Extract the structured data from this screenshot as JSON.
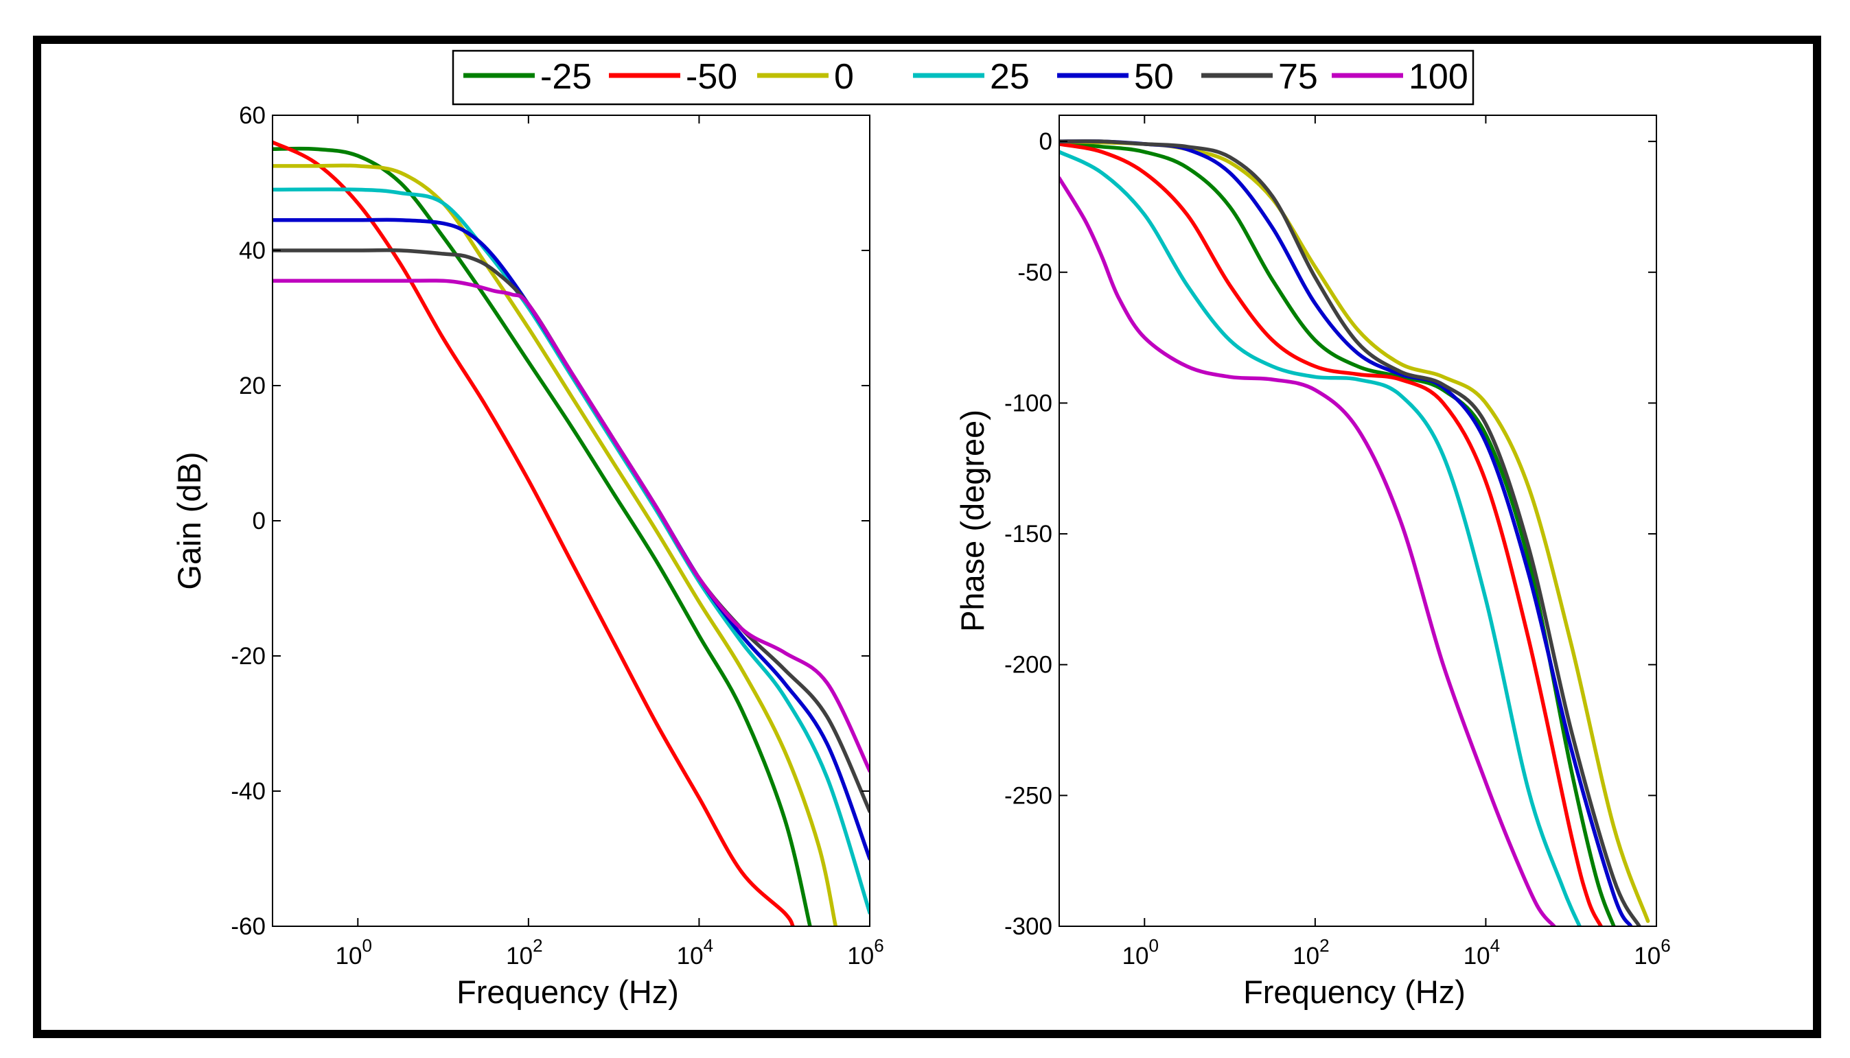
{
  "legend": {
    "entries": [
      {
        "label": "-25",
        "color": "#007f00"
      },
      {
        "label": "-50",
        "color": "#ff0000"
      },
      {
        "label": "0",
        "color": "#bfbf00"
      },
      {
        "label": "25",
        "color": "#00bfbf"
      },
      {
        "label": "50",
        "color": "#0000cc"
      },
      {
        "label": "75",
        "color": "#404040"
      },
      {
        "label": "100",
        "color": "#bf00bf"
      }
    ]
  },
  "chart_data": [
    {
      "type": "line",
      "title": "",
      "xlabel": "Frequency (Hz)",
      "ylabel": "Gain (dB)",
      "xscale": "log",
      "xlim_log10": [
        -1,
        6
      ],
      "ylim": [
        -60,
        60
      ],
      "x_ticks": [
        {
          "base": "10",
          "exp": "0",
          "log": 0
        },
        {
          "base": "10",
          "exp": "2",
          "log": 2
        },
        {
          "base": "10",
          "exp": "4",
          "log": 4
        },
        {
          "base": "10",
          "exp": "6",
          "log": 6
        }
      ],
      "y_ticks": [
        "60",
        "40",
        "20",
        "0",
        "-20",
        "-40",
        "-60"
      ],
      "series": [
        {
          "name": "-25",
          "x_log10": [
            -1,
            -0.5,
            0,
            0.5,
            1,
            1.5,
            2,
            2.5,
            3,
            3.5,
            4,
            4.5,
            5,
            5.3
          ],
          "y": [
            55,
            55,
            54,
            50,
            42,
            33,
            23.5,
            14,
            4,
            -6,
            -17,
            -28,
            -44,
            -60
          ]
        },
        {
          "name": "-50",
          "x_log10": [
            -1,
            -0.5,
            0,
            0.5,
            1,
            1.5,
            2,
            2.5,
            3,
            3.5,
            4,
            4.5,
            5,
            5.1
          ],
          "y": [
            56,
            53,
            47,
            38,
            27,
            17,
            6,
            -6,
            -18,
            -30,
            -41,
            -52,
            -58,
            -60
          ]
        },
        {
          "name": "0",
          "x_log10": [
            -1,
            -0.5,
            0,
            0.5,
            1,
            1.5,
            2,
            2.5,
            3,
            3.5,
            4,
            4.5,
            5,
            5.4,
            5.6
          ],
          "y": [
            52.5,
            52.5,
            52.5,
            51.5,
            47,
            38,
            28.5,
            18.5,
            8.5,
            -1.5,
            -12,
            -22,
            -34,
            -48,
            -60
          ]
        },
        {
          "name": "25",
          "x_log10": [
            -1,
            0,
            0.5,
            1,
            1.5,
            2,
            2.5,
            3,
            3.5,
            4,
            4.5,
            5,
            5.5,
            6
          ],
          "y": [
            49,
            49,
            48.5,
            47,
            40,
            31.5,
            21.5,
            11.5,
            1.5,
            -9,
            -18,
            -26,
            -38,
            -58
          ]
        },
        {
          "name": "50",
          "x_log10": [
            -1,
            0,
            0.5,
            1,
            1.3,
            1.6,
            2,
            2.5,
            3,
            3.5,
            4,
            4.5,
            5,
            5.5,
            6
          ],
          "y": [
            44.5,
            44.5,
            44.5,
            44,
            42.5,
            39,
            32,
            22,
            12,
            2,
            -8.5,
            -17,
            -24,
            -33,
            -50
          ]
        },
        {
          "name": "75",
          "x_log10": [
            -1,
            0,
            0.5,
            1,
            1.3,
            1.6,
            2,
            2.5,
            3,
            3.5,
            4,
            4.5,
            5,
            5.5,
            6
          ],
          "y": [
            40,
            40,
            40,
            39.5,
            39,
            37,
            32,
            22,
            12,
            2,
            -8.5,
            -16,
            -22,
            -29,
            -43
          ]
        },
        {
          "name": "100",
          "x_log10": [
            -1,
            0,
            0.5,
            1,
            1.3,
            1.6,
            1.8,
            2,
            2.5,
            3,
            3.5,
            4,
            4.5,
            5,
            5.5,
            6
          ],
          "y": [
            35.5,
            35.5,
            35.5,
            35.5,
            35,
            34,
            33.5,
            32,
            22,
            12,
            2,
            -8.5,
            -16,
            -19.5,
            -24,
            -37
          ]
        }
      ]
    },
    {
      "type": "line",
      "title": "",
      "xlabel": "Frequency (Hz)",
      "ylabel": "Phase (degree)",
      "xscale": "log",
      "xlim_log10": [
        -1,
        6
      ],
      "ylim": [
        -300,
        10
      ],
      "x_ticks": [
        {
          "base": "10",
          "exp": "0",
          "log": 0
        },
        {
          "base": "10",
          "exp": "2",
          "log": 2
        },
        {
          "base": "10",
          "exp": "4",
          "log": 4
        },
        {
          "base": "10",
          "exp": "6",
          "log": 6
        }
      ],
      "y_ticks": [
        "0",
        "-50",
        "-100",
        "-150",
        "-200",
        "-250",
        "-300"
      ],
      "series": [
        {
          "name": "-25",
          "x_log10": [
            -1,
            -0.5,
            0,
            0.5,
            1,
            1.5,
            2,
            2.5,
            3,
            3.5,
            4,
            4.5,
            5,
            5.3,
            5.5
          ],
          "y": [
            -1,
            -2,
            -4,
            -10,
            -25,
            -53,
            -76,
            -86,
            -90,
            -95,
            -112,
            -160,
            -240,
            -282,
            -300
          ]
        },
        {
          "name": "-50",
          "x_log10": [
            -1,
            -0.5,
            0,
            0.5,
            1,
            1.5,
            2,
            2.5,
            3,
            3.5,
            4,
            4.5,
            5,
            5.2,
            5.35
          ],
          "y": [
            -1,
            -4,
            -12,
            -28,
            -55,
            -76,
            -86,
            -89,
            -91,
            -100,
            -130,
            -190,
            -265,
            -290,
            -300
          ]
        },
        {
          "name": "0",
          "x_log10": [
            -1,
            0,
            0.5,
            1,
            1.5,
            2,
            2.5,
            3,
            3.5,
            4,
            4.5,
            5,
            5.5,
            5.9
          ],
          "y": [
            0,
            -1,
            -3,
            -8,
            -22,
            -48,
            -72,
            -85,
            -90,
            -100,
            -132,
            -192,
            -262,
            -298
          ]
        },
        {
          "name": "25",
          "x_log10": [
            -1,
            -0.5,
            0,
            0.5,
            1,
            1.5,
            2,
            2.5,
            3,
            3.5,
            4,
            4.5,
            4.9,
            5.1
          ],
          "y": [
            -4,
            -12,
            -28,
            -55,
            -76,
            -86,
            -90,
            -91,
            -97,
            -120,
            -175,
            -248,
            -285,
            -300
          ]
        },
        {
          "name": "50",
          "x_log10": [
            -1,
            -0.5,
            0,
            0.5,
            1,
            1.5,
            2,
            2.5,
            3,
            3.5,
            4,
            4.5,
            5,
            5.5,
            5.7
          ],
          "y": [
            0,
            0,
            -1,
            -3,
            -12,
            -33,
            -62,
            -81,
            -89,
            -94,
            -115,
            -165,
            -232,
            -288,
            -300
          ]
        },
        {
          "name": "75",
          "x_log10": [
            -1,
            -0.5,
            0,
            0.5,
            1,
            1.5,
            2,
            2.5,
            3,
            3.5,
            4,
            4.5,
            5,
            5.5,
            5.8
          ],
          "y": [
            0,
            0,
            -1,
            -2,
            -6,
            -21,
            -52,
            -77,
            -88,
            -93,
            -108,
            -155,
            -225,
            -282,
            -300
          ]
        },
        {
          "name": "100",
          "x_log10": [
            -1,
            -0.7,
            -0.5,
            -0.3,
            0,
            0.5,
            1,
            1.5,
            2,
            2.5,
            3,
            3.5,
            4,
            4.3,
            4.6,
            4.8
          ],
          "y": [
            -14,
            -30,
            -44,
            -60,
            -75,
            -86,
            -90,
            -91,
            -95,
            -110,
            -145,
            -200,
            -245,
            -270,
            -292,
            -300
          ]
        }
      ]
    }
  ]
}
